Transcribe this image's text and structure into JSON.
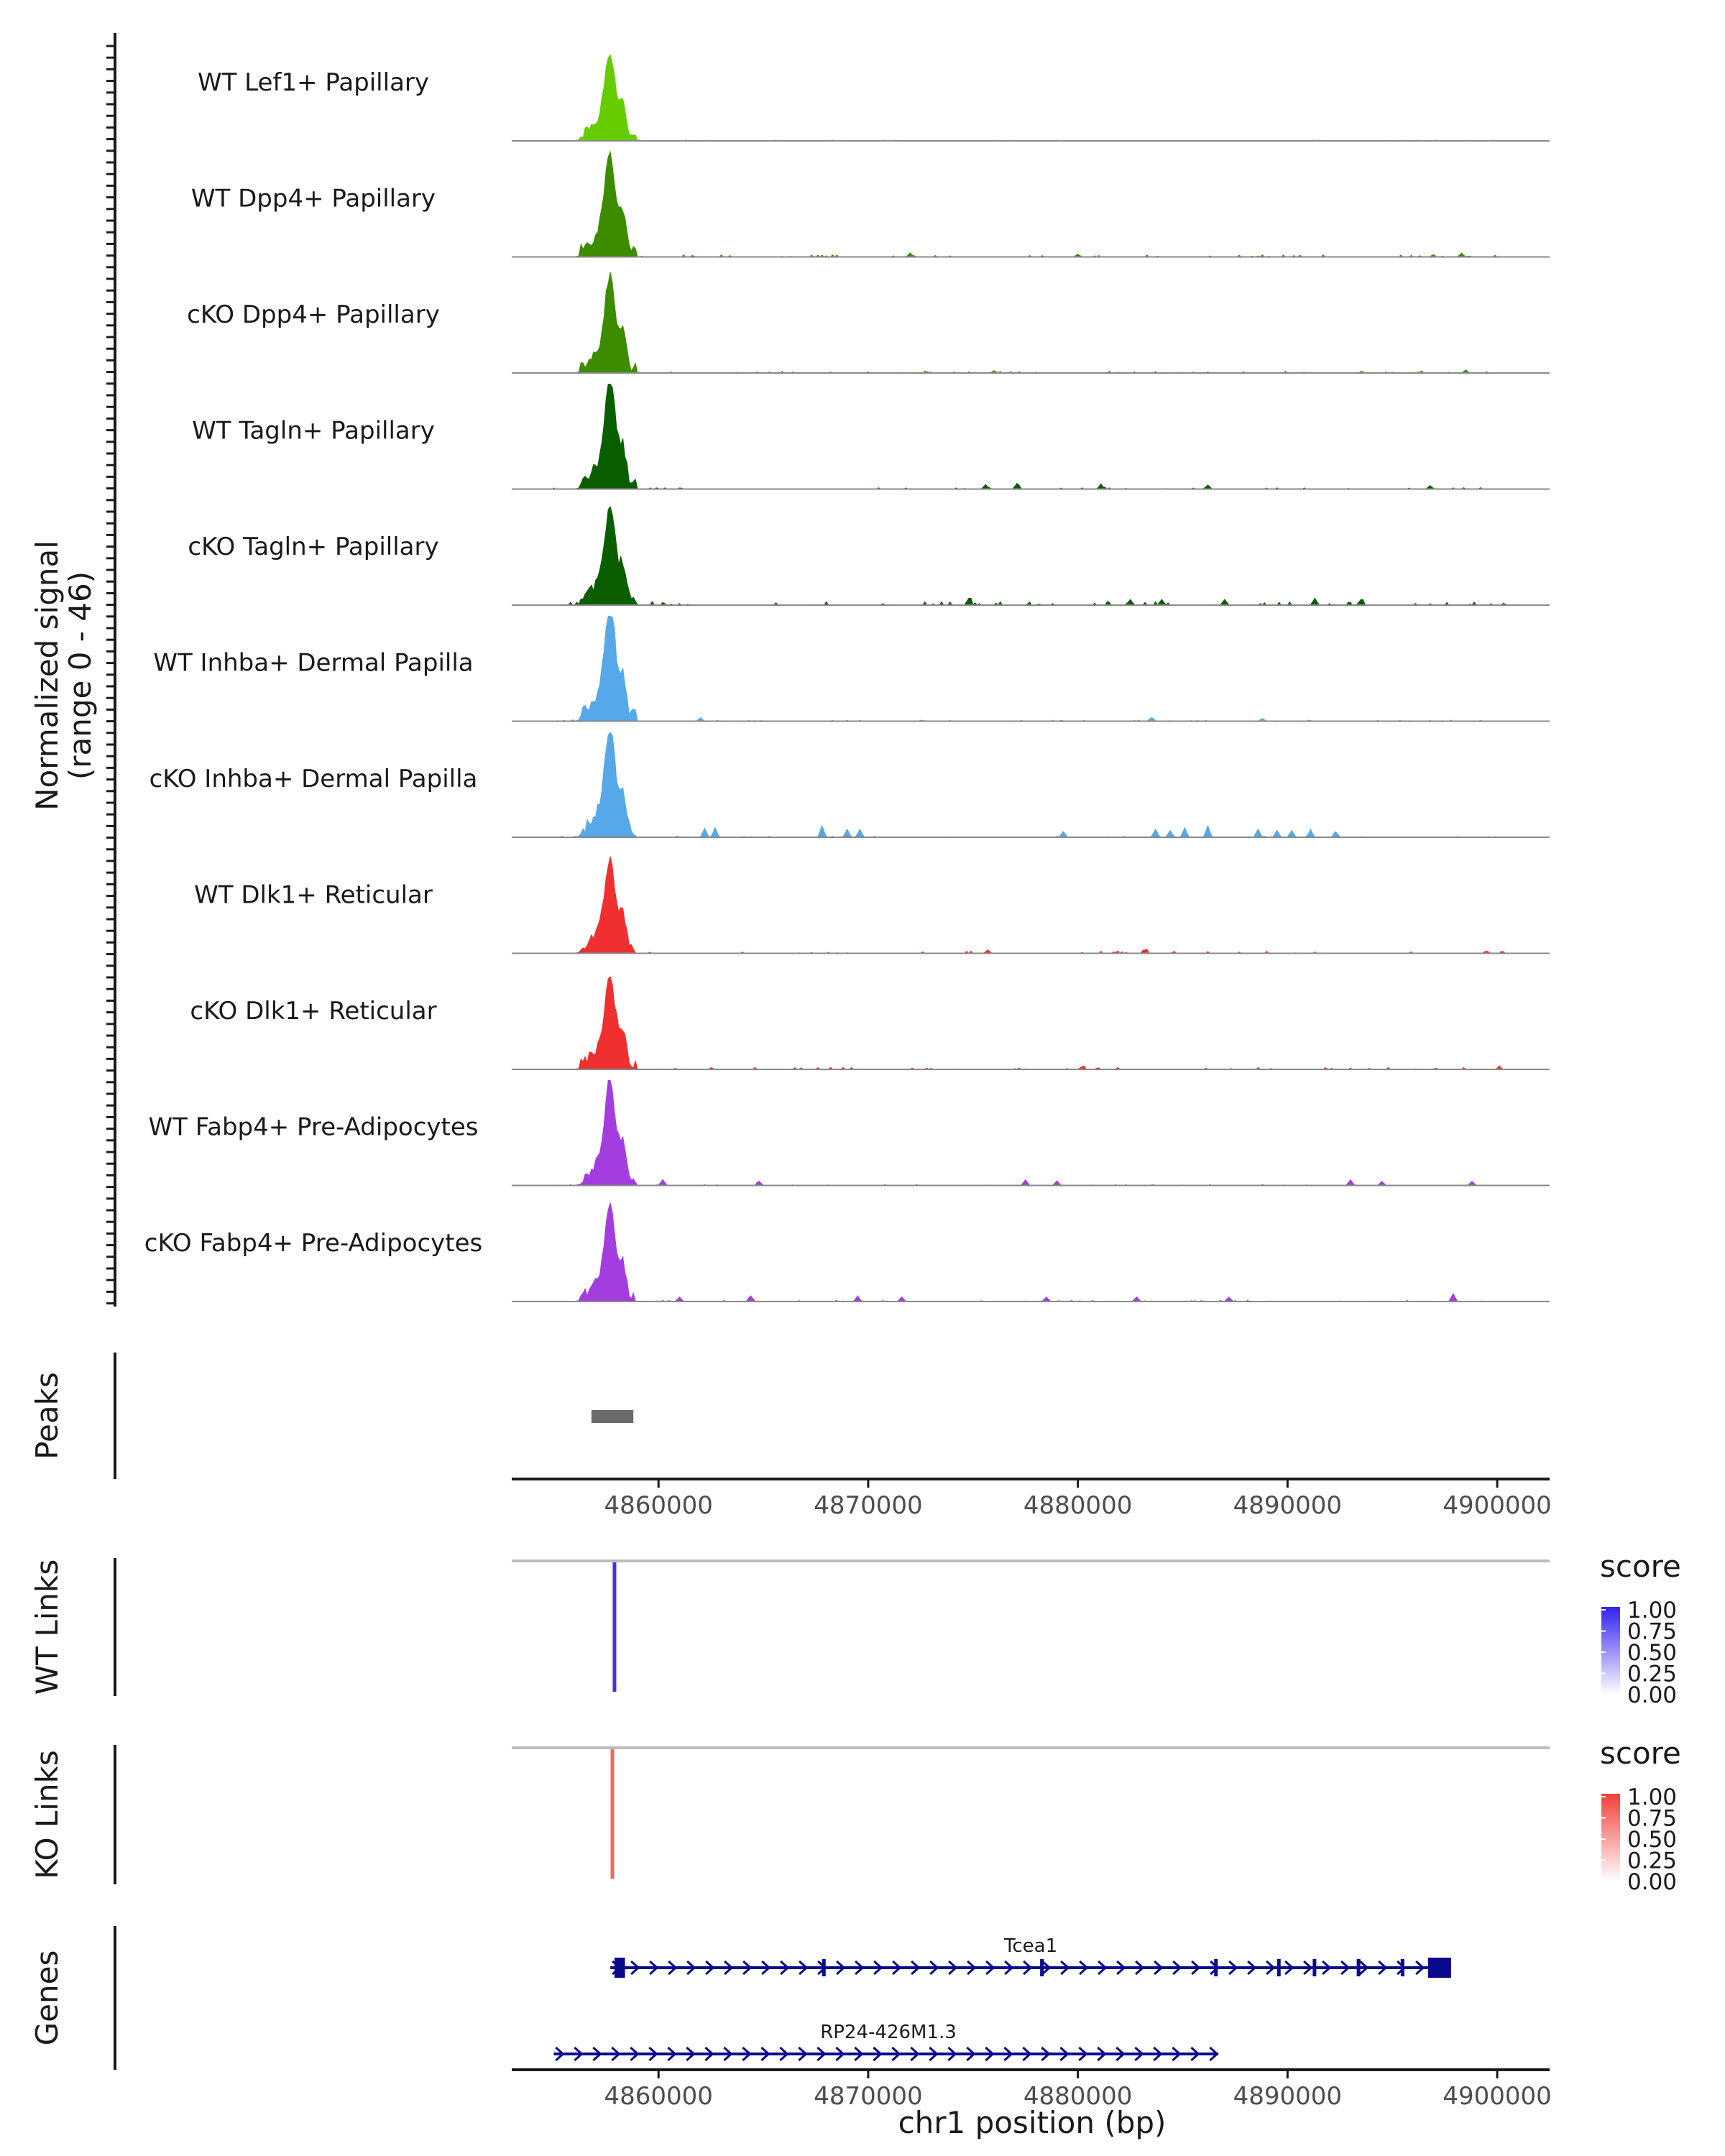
{
  "chart_data": {
    "type": "area",
    "title": "",
    "region": {
      "chromosome": "chr1",
      "start": 4853000,
      "end": 4902500
    },
    "xlabel": "chr1 position (bp)",
    "x_ticks": [
      4860000,
      4870000,
      4880000,
      4890000,
      4900000
    ],
    "x_tick_labels": [
      "4860000",
      "4870000",
      "4880000",
      "4890000",
      "4900000"
    ],
    "coverage": {
      "ylabel": "Normalized signal",
      "ylabel_range": "(range 0 - 46)",
      "ylim": [
        0,
        46
      ],
      "tracks": [
        {
          "name": "WT Lef1+ Papillary",
          "color": "#66cc00",
          "peak": 34,
          "noise": 0.4,
          "seed": 1,
          "spikes": []
        },
        {
          "name": "WT Dpp4+ Papillary",
          "color": "#3d8c00",
          "peak": 40,
          "noise": 0.9,
          "seed": 2,
          "spikes": [
            [
              4872000,
              1.5
            ],
            [
              4880000,
              1.2
            ],
            [
              4898300,
              1.6
            ]
          ]
        },
        {
          "name": "cKO Dpp4+ Papillary",
          "color": "#3d8c00",
          "peak": 37,
          "noise": 0.8,
          "seed": 3,
          "spikes": [
            [
              4876000,
              1.0
            ],
            [
              4898500,
              1.2
            ]
          ]
        },
        {
          "name": "WT Tagln+ Papillary",
          "color": "#0b5e00",
          "peak": 42,
          "noise": 0.6,
          "seed": 4,
          "spikes": [
            [
              4875600,
              2.0
            ],
            [
              4877100,
              2.5
            ],
            [
              4881100,
              2.0
            ],
            [
              4886200,
              1.8
            ],
            [
              4896800,
              1.5
            ]
          ]
        },
        {
          "name": "cKO Tagln+ Papillary",
          "color": "#0b5e00",
          "peak": 38,
          "noise": 1.6,
          "seed": 5,
          "spikes": [
            [
              4874800,
              3.0
            ],
            [
              4882500,
              2.5
            ],
            [
              4884000,
              2.5
            ],
            [
              4887000,
              2.5
            ],
            [
              4891300,
              3.0
            ],
            [
              4893500,
              2.5
            ]
          ]
        },
        {
          "name": "WT Inhba+ Dermal Papilla",
          "color": "#56a8e8",
          "peak": 46,
          "noise": 0.5,
          "seed": 6,
          "spikes": [
            [
              4862000,
              1.5
            ],
            [
              4883500,
              1.5
            ],
            [
              4888800,
              1.2
            ]
          ]
        },
        {
          "name": "cKO Inhba+ Dermal Papilla",
          "color": "#56a8e8",
          "peak": 42,
          "noise": 0.5,
          "seed": 7,
          "spikes": [
            [
              4862200,
              4.0
            ],
            [
              4862700,
              4.0
            ],
            [
              4867800,
              5.0
            ],
            [
              4869000,
              3.5
            ],
            [
              4869600,
              3.5
            ],
            [
              4879300,
              2.5
            ],
            [
              4883700,
              3.5
            ],
            [
              4884400,
              3.0
            ],
            [
              4885100,
              4.0
            ],
            [
              4886200,
              5.0
            ],
            [
              4888600,
              3.5
            ],
            [
              4889500,
              3.0
            ],
            [
              4890200,
              3.0
            ],
            [
              4891100,
              3.0
            ],
            [
              4892300,
              2.5
            ]
          ]
        },
        {
          "name": "WT Dlk1+ Reticular",
          "color": "#f03030",
          "peak": 36,
          "noise": 1.0,
          "seed": 8,
          "spikes": [
            [
              4875700,
              1.5
            ],
            [
              4883200,
              1.5
            ],
            [
              4899500,
              1.0
            ]
          ]
        },
        {
          "name": "cKO Dlk1+ Reticular",
          "color": "#f03030",
          "peak": 36,
          "noise": 0.9,
          "seed": 9,
          "spikes": [
            [
              4880200,
              1.2
            ],
            [
              4900100,
              1.0
            ]
          ]
        },
        {
          "name": "WT Fabp4+ Pre-Adipocytes",
          "color": "#a33de0",
          "peak": 40,
          "noise": 0.4,
          "seed": 10,
          "spikes": [
            [
              4860200,
              2.5
            ],
            [
              4864800,
              1.8
            ],
            [
              4877500,
              2.5
            ],
            [
              4879000,
              2.0
            ],
            [
              4893000,
              2.5
            ],
            [
              4894500,
              1.8
            ],
            [
              4898800,
              1.8
            ]
          ]
        },
        {
          "name": "cKO Fabp4+ Pre-Adipocytes",
          "color": "#a33de0",
          "peak": 36,
          "noise": 0.5,
          "seed": 11,
          "spikes": [
            [
              4861000,
              2.0
            ],
            [
              4864400,
              2.5
            ],
            [
              4869500,
              2.0
            ],
            [
              4871600,
              2.0
            ],
            [
              4878500,
              2.0
            ],
            [
              4882800,
              2.0
            ],
            [
              4887200,
              2.0
            ],
            [
              4897900,
              3.5
            ]
          ]
        }
      ]
    },
    "peaks": {
      "label": "Peaks",
      "color": "#6b6b6b",
      "regions": [
        [
          4856800,
          4858800
        ]
      ]
    },
    "links": [
      {
        "label": "WT Links",
        "color": "#4433dd",
        "anchor": 4857900,
        "score": 0.8
      },
      {
        "label": "KO Links",
        "color": "#f26a50",
        "anchor": 4857800,
        "score": 0.7
      }
    ],
    "legends": [
      {
        "title": "score",
        "high_color": "#3322ee",
        "ticks": [
          "1.00",
          "0.75",
          "0.50",
          "0.25",
          "0.00"
        ]
      },
      {
        "title": "score",
        "high_color": "#f0403a",
        "ticks": [
          "1.00",
          "0.75",
          "0.50",
          "0.25",
          "0.00"
        ]
      }
    ],
    "genes": {
      "label": "Genes",
      "color": "#0a0a8c",
      "items": [
        {
          "name": "Tcea1",
          "start": 4857700,
          "end": 4897800,
          "strand": "+",
          "exons": [
            [
              4857900,
              4858400
            ],
            [
              4867800,
              4867900
            ],
            [
              4878200,
              4878300
            ],
            [
              4886500,
              4886600
            ],
            [
              4889500,
              4889600
            ],
            [
              4891200,
              4891300
            ],
            [
              4893300,
              4893400
            ],
            [
              4895400,
              4895500
            ],
            [
              4896700,
              4897800
            ]
          ]
        },
        {
          "name": "RP24-426M1.3",
          "start": 4855000,
          "end": 4886700,
          "strand": "+",
          "exons": []
        }
      ]
    }
  }
}
